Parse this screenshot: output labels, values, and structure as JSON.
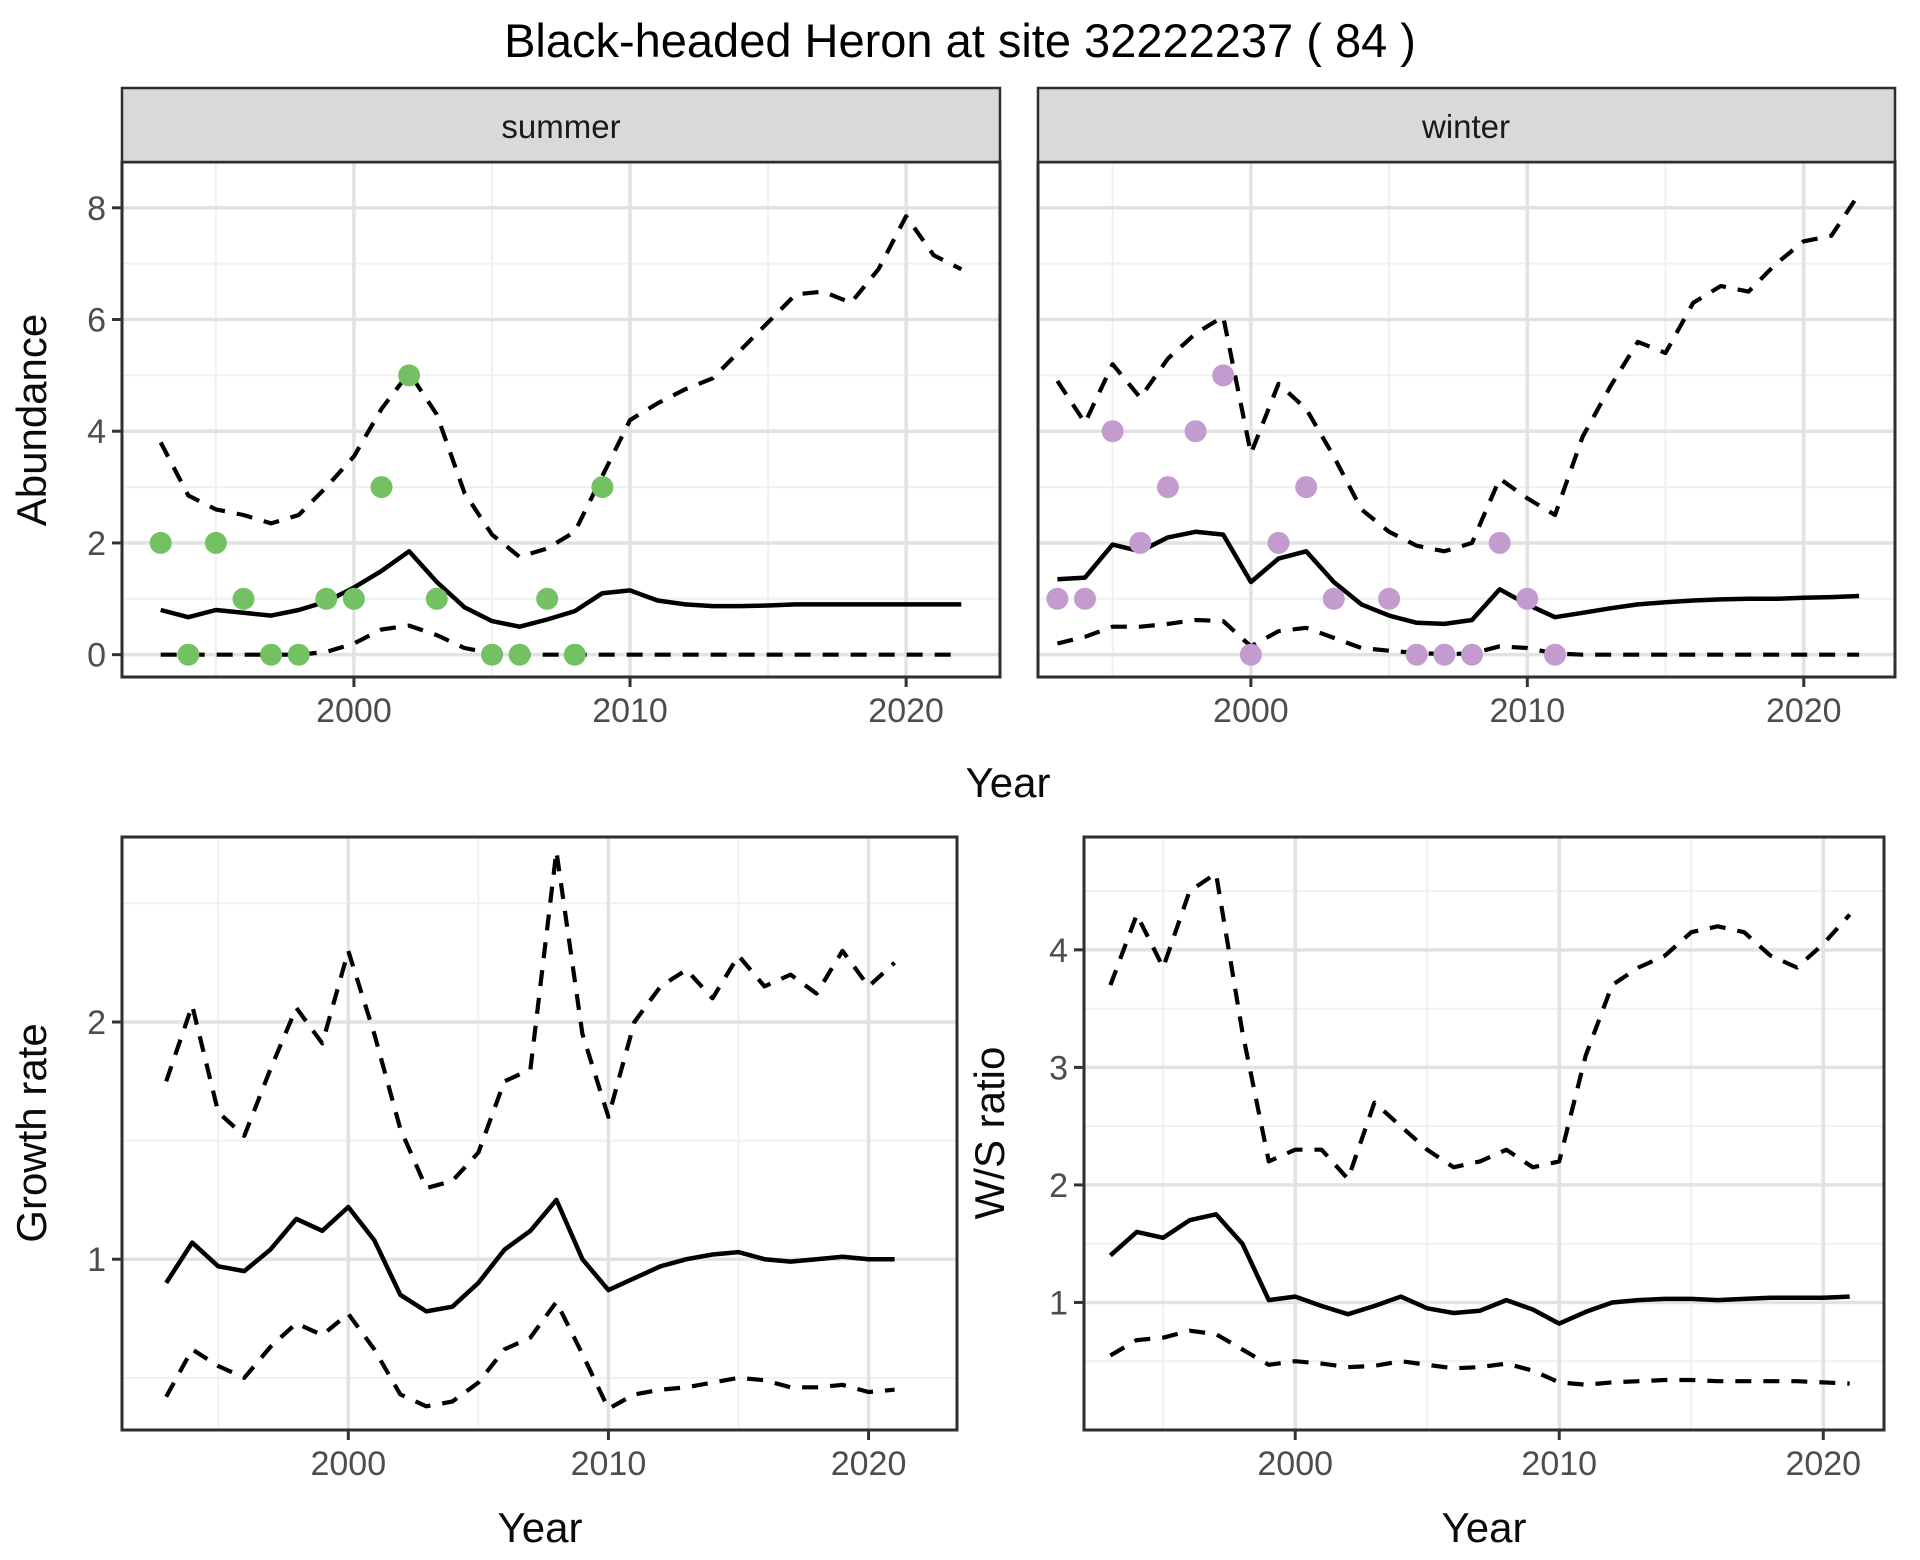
{
  "title": "Black-headed Heron at site 32222237 ( 84 )",
  "facets": {
    "summer": "summer",
    "winter": "winter"
  },
  "axes": {
    "abundance_label": "Abundance",
    "year_label": "Year",
    "growth_label": "Growth rate",
    "ws_label": "W/S ratio"
  },
  "colors": {
    "summer_points": "#74C164",
    "winter_points": "#C39BCE",
    "line": "#000000",
    "grid_major": "#E2E2E2",
    "grid_minor": "#F0F0F0",
    "panel_border": "#2E2E2E",
    "strip_bg": "#D9D9D9",
    "tick_mark": "#333333",
    "tick_text": "#4D4D4D"
  },
  "chart_data": [
    {
      "panel": "abundance-summer",
      "type": "line",
      "strip": "summer",
      "xlabel": "Year",
      "ylabel": "Abundance",
      "xlim": [
        1991.6,
        2023.4
      ],
      "ylim": [
        -0.4,
        8.82
      ],
      "x_ticks": [
        2000,
        2010,
        2020
      ],
      "x_minor": [
        1995,
        2005,
        2015
      ],
      "y_ticks": [
        0,
        2,
        4,
        6,
        8
      ],
      "y_minor": [
        1,
        3,
        5,
        7
      ],
      "grid": true,
      "legend": "none",
      "years": [
        1993,
        1994,
        1995,
        1996,
        1997,
        1998,
        1999,
        2000,
        2001,
        2002,
        2003,
        2004,
        2005,
        2006,
        2007,
        2008,
        2009,
        2010,
        2011,
        2012,
        2013,
        2014,
        2015,
        2016,
        2017,
        2018,
        2019,
        2020,
        2021,
        2022
      ],
      "series": [
        {
          "name": "upper-ci",
          "style": "dashed",
          "values": [
            3.8,
            2.85,
            2.6,
            2.5,
            2.35,
            2.5,
            3.0,
            3.55,
            4.4,
            5.05,
            4.3,
            2.9,
            2.15,
            1.75,
            1.9,
            2.2,
            3.2,
            4.2,
            4.5,
            4.75,
            4.95,
            5.45,
            5.95,
            6.45,
            6.5,
            6.3,
            6.9,
            7.85,
            7.15,
            6.9
          ]
        },
        {
          "name": "fit",
          "style": "solid",
          "values": [
            0.8,
            0.67,
            0.8,
            0.75,
            0.7,
            0.8,
            0.95,
            1.2,
            1.5,
            1.85,
            1.3,
            0.85,
            0.6,
            0.5,
            0.63,
            0.78,
            1.1,
            1.15,
            0.97,
            0.9,
            0.87,
            0.87,
            0.88,
            0.9,
            0.9,
            0.9,
            0.9,
            0.9,
            0.9,
            0.9
          ]
        },
        {
          "name": "lower-ci",
          "style": "dashed",
          "values": [
            0,
            0,
            0,
            0,
            0,
            0,
            0.05,
            0.2,
            0.45,
            0.52,
            0.35,
            0.12,
            0.02,
            0,
            0,
            0,
            0,
            0,
            0,
            0,
            0,
            0,
            0,
            0,
            0,
            0,
            0,
            0,
            0,
            0
          ]
        }
      ],
      "points": {
        "name": "observations",
        "color_key": "summer_points",
        "x": [
          1993,
          1994,
          1995,
          1996,
          1997,
          1998,
          1999,
          2000,
          2001,
          2002,
          2003,
          2005,
          2006,
          2007,
          2008,
          2009
        ],
        "y": [
          2,
          0,
          2,
          1,
          0,
          0,
          1,
          1,
          3,
          5,
          1,
          0,
          0,
          1,
          0,
          3
        ]
      }
    },
    {
      "panel": "abundance-winter",
      "type": "line",
      "strip": "winter",
      "xlabel": "Year",
      "ylabel": "Abundance",
      "xlim": [
        1992.3,
        2023.3
      ],
      "ylim": [
        -0.4,
        8.82
      ],
      "x_ticks": [
        2000,
        2010,
        2020
      ],
      "x_minor": [
        1995,
        2005,
        2015
      ],
      "y_ticks": [
        0,
        2,
        4,
        6,
        8
      ],
      "y_minor": [
        1,
        3,
        5,
        7
      ],
      "grid": true,
      "legend": "none",
      "years": [
        1993,
        1994,
        1995,
        1996,
        1997,
        1998,
        1999,
        2000,
        2001,
        2002,
        2003,
        2004,
        2005,
        2006,
        2007,
        2008,
        2009,
        2010,
        2011,
        2012,
        2013,
        2014,
        2015,
        2016,
        2017,
        2018,
        2019,
        2020,
        2021,
        2022
      ],
      "series": [
        {
          "name": "upper-ci",
          "style": "dashed",
          "values": [
            4.9,
            4.15,
            5.2,
            4.6,
            5.3,
            5.75,
            6.05,
            3.6,
            4.85,
            4.4,
            3.55,
            2.6,
            2.2,
            1.95,
            1.85,
            2.0,
            3.15,
            2.8,
            2.5,
            3.9,
            4.8,
            5.6,
            5.4,
            6.3,
            6.6,
            6.5,
            7.0,
            7.4,
            7.5,
            8.25
          ]
        },
        {
          "name": "fit",
          "style": "solid",
          "values": [
            1.35,
            1.38,
            1.97,
            1.85,
            2.1,
            2.2,
            2.15,
            1.3,
            1.72,
            1.85,
            1.3,
            0.9,
            0.7,
            0.57,
            0.55,
            0.62,
            1.17,
            0.9,
            0.67,
            0.75,
            0.83,
            0.9,
            0.94,
            0.97,
            0.99,
            1.0,
            1.0,
            1.02,
            1.03,
            1.05
          ]
        },
        {
          "name": "lower-ci",
          "style": "dashed",
          "values": [
            0.2,
            0.32,
            0.5,
            0.5,
            0.55,
            0.62,
            0.6,
            0.15,
            0.42,
            0.48,
            0.3,
            0.12,
            0.07,
            0.03,
            0.01,
            0.02,
            0.15,
            0.12,
            0.02,
            0,
            0,
            0,
            0,
            0,
            0,
            0,
            0,
            0,
            0,
            0
          ]
        }
      ],
      "points": {
        "name": "observations",
        "color_key": "winter_points",
        "x": [
          1993,
          1994,
          1995,
          1996,
          1997,
          1998,
          1999,
          2000,
          2001,
          2002,
          2003,
          2005,
          2006,
          2007,
          2008,
          2009,
          2010,
          2011
        ],
        "y": [
          1,
          1,
          4,
          2,
          3,
          4,
          5,
          0,
          2,
          3,
          1,
          1,
          0,
          0,
          0,
          2,
          1,
          0
        ]
      }
    },
    {
      "panel": "growth",
      "type": "line",
      "strip": "",
      "xlabel": "Year",
      "ylabel": "Growth rate",
      "xlim": [
        1991.3,
        2023.4
      ],
      "ylim": [
        0.28,
        2.78
      ],
      "x_ticks": [
        2000,
        2010,
        2020
      ],
      "x_minor": [
        1995,
        2005,
        2015
      ],
      "y_ticks": [
        1,
        2
      ],
      "y_minor": [
        0.5,
        1.5,
        2.5
      ],
      "grid": true,
      "legend": "none",
      "years": [
        1993,
        1994,
        1995,
        1996,
        1997,
        1998,
        1999,
        2000,
        2001,
        2002,
        2003,
        2004,
        2005,
        2006,
        2007,
        2008,
        2009,
        2010,
        2011,
        2012,
        2013,
        2014,
        2015,
        2016,
        2017,
        2018,
        2019,
        2020,
        2021
      ],
      "series": [
        {
          "name": "upper-ci",
          "style": "dashed",
          "values": [
            1.75,
            2.07,
            1.62,
            1.52,
            1.8,
            2.06,
            1.91,
            2.3,
            1.95,
            1.55,
            1.3,
            1.33,
            1.45,
            1.75,
            1.8,
            2.72,
            1.95,
            1.6,
            2.0,
            2.15,
            2.22,
            2.1,
            2.28,
            2.15,
            2.2,
            2.12,
            2.3,
            2.15,
            2.25
          ]
        },
        {
          "name": "fit",
          "style": "solid",
          "values": [
            0.9,
            1.07,
            0.97,
            0.95,
            1.04,
            1.17,
            1.12,
            1.22,
            1.08,
            0.85,
            0.78,
            0.8,
            0.9,
            1.04,
            1.12,
            1.25,
            1.0,
            0.87,
            0.92,
            0.97,
            1.0,
            1.02,
            1.03,
            1.0,
            0.99,
            1.0,
            1.01,
            1.0,
            1.0
          ]
        },
        {
          "name": "lower-ci",
          "style": "dashed",
          "values": [
            0.42,
            0.62,
            0.55,
            0.5,
            0.63,
            0.73,
            0.68,
            0.77,
            0.62,
            0.43,
            0.38,
            0.4,
            0.48,
            0.62,
            0.67,
            0.82,
            0.6,
            0.37,
            0.43,
            0.45,
            0.46,
            0.48,
            0.5,
            0.49,
            0.46,
            0.46,
            0.47,
            0.44,
            0.45
          ]
        }
      ],
      "points": null
    },
    {
      "panel": "ws",
      "type": "line",
      "strip": "",
      "xlabel": "Year",
      "ylabel": "W/S ratio",
      "xlim": [
        1992.0,
        2022.3
      ],
      "ylim": [
        -0.085,
        4.96
      ],
      "x_ticks": [
        2000,
        2010,
        2020
      ],
      "x_minor": [
        1995,
        2005,
        2015
      ],
      "y_ticks": [
        1,
        2,
        3,
        4
      ],
      "y_minor": [
        0.5,
        1.5,
        2.5,
        3.5,
        4.5
      ],
      "grid": true,
      "legend": "none",
      "years": [
        1993,
        1994,
        1995,
        1996,
        1997,
        1998,
        1999,
        2000,
        2001,
        2002,
        2003,
        2004,
        2005,
        2006,
        2007,
        2008,
        2009,
        2010,
        2011,
        2012,
        2013,
        2014,
        2015,
        2016,
        2017,
        2018,
        2019,
        2020,
        2021
      ],
      "series": [
        {
          "name": "upper-ci",
          "style": "dashed",
          "values": [
            3.7,
            4.3,
            3.85,
            4.5,
            4.65,
            3.3,
            2.2,
            2.3,
            2.3,
            2.05,
            2.7,
            2.5,
            2.3,
            2.15,
            2.2,
            2.3,
            2.15,
            2.2,
            3.1,
            3.7,
            3.85,
            3.95,
            4.15,
            4.2,
            4.15,
            3.95,
            3.85,
            4.05,
            4.3
          ]
        },
        {
          "name": "fit",
          "style": "solid",
          "values": [
            1.4,
            1.6,
            1.55,
            1.7,
            1.75,
            1.5,
            1.02,
            1.05,
            0.97,
            0.9,
            0.97,
            1.05,
            0.95,
            0.91,
            0.93,
            1.02,
            0.94,
            0.82,
            0.92,
            1.0,
            1.02,
            1.03,
            1.03,
            1.02,
            1.03,
            1.04,
            1.04,
            1.04,
            1.05
          ]
        },
        {
          "name": "lower-ci",
          "style": "dashed",
          "values": [
            0.55,
            0.68,
            0.7,
            0.76,
            0.73,
            0.6,
            0.47,
            0.5,
            0.48,
            0.45,
            0.46,
            0.5,
            0.47,
            0.44,
            0.45,
            0.48,
            0.42,
            0.32,
            0.3,
            0.32,
            0.33,
            0.34,
            0.34,
            0.33,
            0.33,
            0.33,
            0.33,
            0.32,
            0.31
          ]
        }
      ],
      "points": null
    }
  ]
}
